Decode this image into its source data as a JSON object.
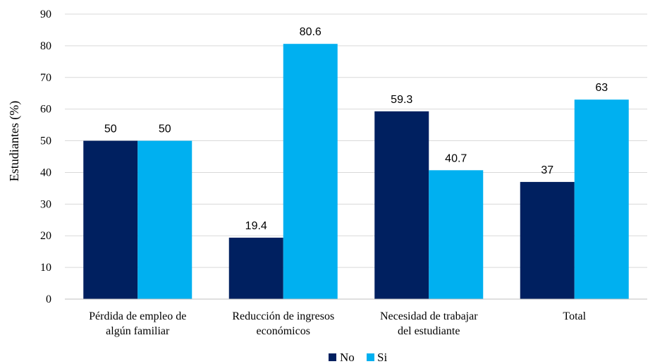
{
  "chart_data": {
    "type": "bar",
    "title": "",
    "xlabel": "",
    "ylabel": "Estudiantes (%)",
    "ylim": [
      0,
      90
    ],
    "yticks": [
      0,
      10,
      20,
      30,
      40,
      50,
      60,
      70,
      80,
      90
    ],
    "grid": true,
    "legend_position": "bottom",
    "categories": [
      [
        "Pérdida de empleo de",
        "algún familiar"
      ],
      [
        "Reducción de ingresos",
        "económicos"
      ],
      [
        "Necesidad de trabajar",
        "del estudiante"
      ],
      [
        "Total"
      ]
    ],
    "series": [
      {
        "name": "No",
        "color": "#002060",
        "values": [
          50,
          19.4,
          59.3,
          37
        ]
      },
      {
        "name": "Si",
        "color": "#00B0F0",
        "values": [
          50,
          80.6,
          40.7,
          63
        ]
      }
    ]
  }
}
